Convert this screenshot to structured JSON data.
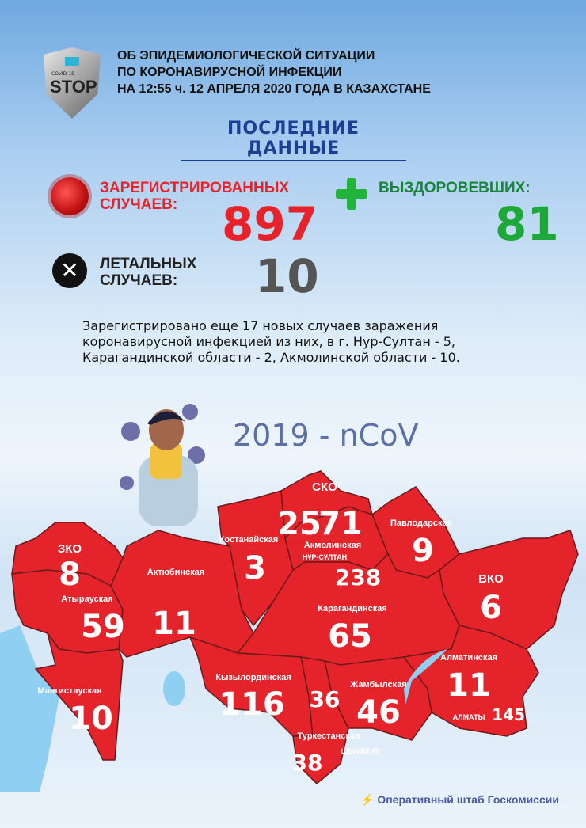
{
  "logo": {
    "small_text": "COVID-19",
    "text": "STOP"
  },
  "header": {
    "lines": [
      "ОБ ЭПИДЕМИОЛОГИЧЕСКОЙ СИТУАЦИИ",
      "ПО КОРОНАВИРУСНОЙ ИНФЕКЦИИ",
      "НА 12:55 ч. 12 АПРЕЛЯ 2020 ГОДА В КАЗАХСТАНЕ"
    ]
  },
  "latest_title": "ПОСЛЕДНИЕ  ДАННЫЕ",
  "stats": {
    "registered": {
      "label1": "ЗАРЕГИСТРИРОВАННЫХ",
      "label2": "СЛУЧАЕВ:",
      "value": "897",
      "color": "#e8222a",
      "icon": "virus-icon"
    },
    "recovered": {
      "label": "ВЫЗДОРОВЕВШИХ:",
      "value": "81",
      "color": "#1ea83a",
      "icon": "plus-icon"
    },
    "deaths": {
      "label1": "ЛЕТАЛЬНЫХ",
      "label2": "СЛУЧАЕВ:",
      "value": "10",
      "color": "#555555",
      "icon": "cross-icon"
    }
  },
  "info_lines": [
    "Зарегистрировано еще 17 новых случаев заражения",
    "коронавирусной инфекцией из них, в г. Нур-Султан - 5,",
    "Карагандинской области - 2, Акмолинской области - 10."
  ],
  "virus_name": "2019 - nCoV",
  "map": {
    "region_color": "#e5232b",
    "border_color": "#6b1a1a",
    "water_color": "#8fd0f2",
    "regions": [
      {
        "name": "ЗКО",
        "count": "8"
      },
      {
        "name": "Атырауская",
        "count": "59"
      },
      {
        "name": "Мангистауская",
        "count": "10"
      },
      {
        "name": "Актюбинская",
        "count": "11"
      },
      {
        "name": "Костанайская",
        "count": "3"
      },
      {
        "name": "СКО",
        "count": "25"
      },
      {
        "name": "Акмолинская",
        "count": "71"
      },
      {
        "name": "Павлодарская",
        "count": "9"
      },
      {
        "name": "ВКО",
        "count": "6"
      },
      {
        "name": "Карагандинская",
        "count": "65"
      },
      {
        "name": "Кызылординская",
        "count": "116"
      },
      {
        "name": "Туркестанская",
        "count": ""
      },
      {
        "name": "Жамбылская",
        "count": "46"
      },
      {
        "name": "Алматинская",
        "count": "11"
      }
    ],
    "cities": [
      {
        "name": "НҰР-СҰЛТАН",
        "count": "238"
      },
      {
        "name": "АЛМАТЫ",
        "count": "145"
      },
      {
        "name": "ШЫМКЕНТ",
        "count": "36"
      },
      {
        "name": "",
        "count": "38"
      }
    ]
  },
  "footer": "Оперативный штаб Госкомиссии"
}
